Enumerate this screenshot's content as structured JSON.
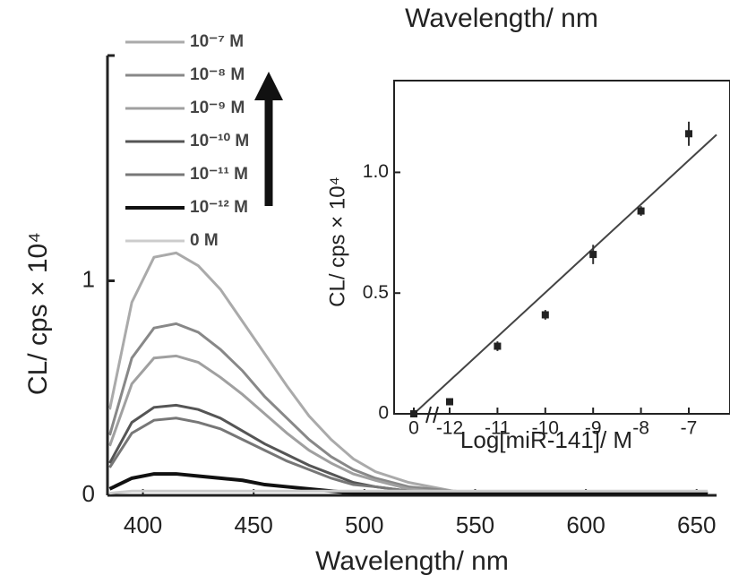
{
  "chart_data": [
    {
      "type": "line",
      "top_label": "Wavelength/ nm",
      "x_label": "Wavelength/ nm",
      "y_label": "CL/ cps × 10⁴",
      "xlim": [
        384,
        659
      ],
      "ylim": [
        -0.05,
        2.05
      ],
      "xticks": [
        400,
        450,
        500,
        550,
        600,
        650
      ],
      "yticks": [
        0,
        1
      ],
      "x": [
        385,
        395,
        405,
        415,
        425,
        435,
        445,
        455,
        465,
        475,
        485,
        495,
        505,
        520,
        540,
        560,
        600,
        655
      ],
      "series": [
        {
          "name": "10⁻⁷ M",
          "color": "#aaaaaa",
          "values": [
            0.4,
            0.9,
            1.11,
            1.13,
            1.07,
            0.96,
            0.81,
            0.66,
            0.51,
            0.37,
            0.26,
            0.17,
            0.11,
            0.06,
            0.02,
            0.01,
            0.01,
            0.01
          ]
        },
        {
          "name": "10⁻⁸ M",
          "color": "#888888",
          "values": [
            0.28,
            0.64,
            0.78,
            0.8,
            0.76,
            0.68,
            0.58,
            0.46,
            0.36,
            0.26,
            0.18,
            0.12,
            0.08,
            0.04,
            0.02,
            0.01,
            0.01,
            0.01
          ]
        },
        {
          "name": "10⁻⁹ M",
          "color": "#a0a0a0",
          "values": [
            0.23,
            0.52,
            0.64,
            0.65,
            0.62,
            0.55,
            0.47,
            0.38,
            0.29,
            0.21,
            0.15,
            0.1,
            0.07,
            0.03,
            0.01,
            0.01,
            0.01,
            0.01
          ]
        },
        {
          "name": "10⁻¹⁰ M",
          "color": "#555555",
          "values": [
            0.15,
            0.34,
            0.41,
            0.42,
            0.4,
            0.36,
            0.3,
            0.24,
            0.19,
            0.14,
            0.1,
            0.06,
            0.04,
            0.02,
            0.01,
            0.01,
            0.01,
            0.01
          ]
        },
        {
          "name": "10⁻¹¹ M",
          "color": "#777777",
          "values": [
            0.13,
            0.29,
            0.35,
            0.36,
            0.34,
            0.31,
            0.26,
            0.21,
            0.16,
            0.12,
            0.08,
            0.05,
            0.04,
            0.02,
            0.01,
            0.01,
            0.01,
            0.01
          ]
        },
        {
          "name": "10⁻¹² M",
          "color": "#111111",
          "values": [
            0.03,
            0.08,
            0.1,
            0.1,
            0.09,
            0.08,
            0.07,
            0.05,
            0.04,
            0.03,
            0.02,
            0.01,
            0.01,
            0.01,
            0.01,
            0.01,
            0.01,
            0.01
          ]
        },
        {
          "name": "0 M",
          "color": "#cccccc",
          "values": [
            0.01,
            0.02,
            0.02,
            0.02,
            0.02,
            0.02,
            0.02,
            0.02,
            0.02,
            0.02,
            0.02,
            0.02,
            0.02,
            0.02,
            0.02,
            0.02,
            0.02,
            0.02
          ]
        }
      ]
    },
    {
      "type": "scatter",
      "x_label": "Log[miR-141]/ M",
      "y_label": "CL/ cps × 10⁴",
      "categories": [
        "0",
        "-12",
        "-11",
        "-10",
        "-9",
        "-8",
        "-7"
      ],
      "values": [
        0.0,
        0.05,
        0.28,
        0.41,
        0.66,
        0.84,
        1.16
      ],
      "errors": [
        0.01,
        0.01,
        0.02,
        0.02,
        0.04,
        0.02,
        0.05
      ],
      "trendline": [
        0.0,
        1.05
      ],
      "ylim": [
        0,
        1.38
      ],
      "yticks": [
        0,
        0.5,
        {
          "value": 1,
          "label": "1.0"
        }
      ]
    }
  ]
}
